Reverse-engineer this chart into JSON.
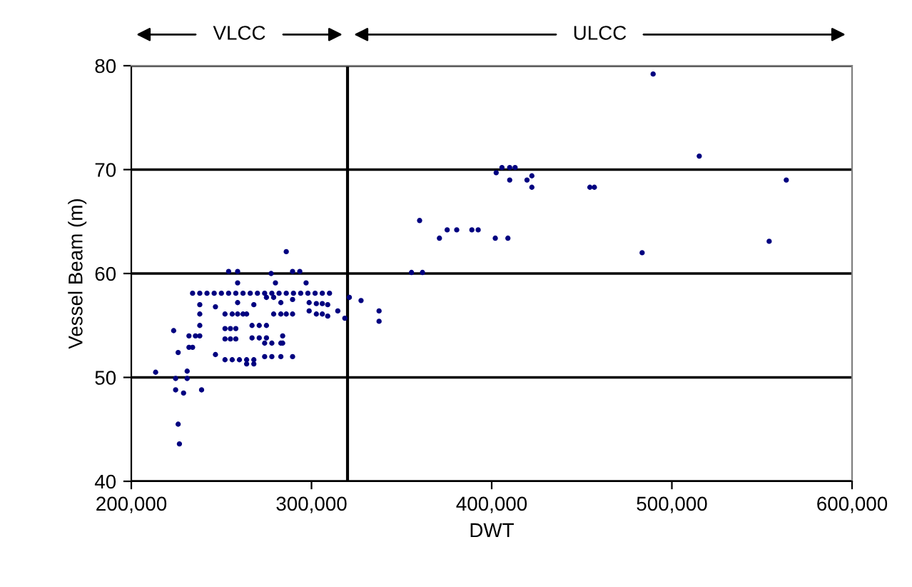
{
  "chart_data": {
    "type": "scatter",
    "xlabel": "DWT",
    "ylabel": "Vessel Beam (m)",
    "annotations": [
      "VLCC",
      "ULCC"
    ],
    "xlim": [
      200000,
      600000
    ],
    "xticks": [
      {
        "value": 200000,
        "label": "200,000"
      },
      {
        "value": 300000,
        "label": "300,000"
      },
      {
        "value": 400000,
        "label": "400,000"
      },
      {
        "value": 500000,
        "label": "500,000"
      },
      {
        "value": 600000,
        "label": "600,000"
      }
    ],
    "ylim": [
      40,
      80
    ],
    "yticks": [
      40,
      50,
      60,
      70,
      80
    ],
    "grid": "y",
    "marker": "circle",
    "ref_lines": [
      {
        "axis": "x",
        "value": 320000,
        "color": "#000000"
      }
    ],
    "series": [
      {
        "color": "#000080",
        "x": [
          213500,
          223500,
          224600,
          224600,
          226000,
          226000,
          226700,
          229000,
          231000,
          231000,
          232000,
          234000,
          232000,
          235600,
          238000,
          238000,
          239000,
          234000,
          238000,
          242000,
          246000,
          250000,
          254000,
          258000,
          262000,
          266000,
          270000,
          274000,
          278000,
          282000,
          286000,
          290000,
          294000,
          298000,
          302000,
          306000,
          310000,
          238000,
          238000,
          246700,
          246700,
          252000,
          256000,
          259000,
          262000,
          264000,
          252000,
          255000,
          258000,
          252000,
          255000,
          258000,
          252000,
          256000,
          260000,
          264000,
          268000,
          254000,
          259000,
          259000,
          259000,
          264000,
          268000,
          268000,
          267000,
          271000,
          275000,
          267000,
          271000,
          275000,
          274000,
          278000,
          283000,
          274000,
          278000,
          283000,
          275000,
          279000,
          283000,
          277600,
          280000,
          279000,
          283000,
          286000,
          284000,
          284000,
          286000,
          289500,
          293500,
          289500,
          289500,
          289500,
          297000,
          298700,
          298700,
          302700,
          306000,
          309000,
          302700,
          306000,
          309000,
          314600,
          318500,
          321000,
          327500,
          337500,
          337500,
          489600,
          515200,
          402500,
          405700,
          410000,
          413000,
          410000,
          419600,
          422300,
          422300,
          454500,
          457000,
          563500,
          360000,
          371000,
          375300,
          380600,
          389000,
          392500,
          402000,
          409000,
          483500,
          554000,
          355500,
          361600
        ],
        "values": [
          50.5,
          54.5,
          49.9,
          48.8,
          52.4,
          45.5,
          43.6,
          48.5,
          50.6,
          49.9,
          52.9,
          52.9,
          54.0,
          54.0,
          54.0,
          55.0,
          48.8,
          58.1,
          58.1,
          58.1,
          58.1,
          58.1,
          58.1,
          58.1,
          58.1,
          58.1,
          58.1,
          58.1,
          58.1,
          58.1,
          58.1,
          58.1,
          58.1,
          58.1,
          58.1,
          58.1,
          58.1,
          57.0,
          56.1,
          56.8,
          52.2,
          56.1,
          56.1,
          56.1,
          56.1,
          56.1,
          54.7,
          54.7,
          54.7,
          53.7,
          53.7,
          53.7,
          51.7,
          51.7,
          51.7,
          51.7,
          51.7,
          60.2,
          60.2,
          59.1,
          57.2,
          51.3,
          51.3,
          57.0,
          55.0,
          55.0,
          55.0,
          53.8,
          53.8,
          53.8,
          53.3,
          53.3,
          53.3,
          52.0,
          52.0,
          52.0,
          57.7,
          57.7,
          57.2,
          60.0,
          59.1,
          56.1,
          56.1,
          56.1,
          54.0,
          53.3,
          62.1,
          60.2,
          60.2,
          57.5,
          56.1,
          52.0,
          59.1,
          57.2,
          56.4,
          57.1,
          57.1,
          57.0,
          56.1,
          56.1,
          55.9,
          56.4,
          55.7,
          57.7,
          57.4,
          56.4,
          55.4,
          79.2,
          71.3,
          69.7,
          70.2,
          70.2,
          70.2,
          69.0,
          69.0,
          69.4,
          68.3,
          68.3,
          68.3,
          69.0,
          65.1,
          63.4,
          64.2,
          64.2,
          64.2,
          64.2,
          63.4,
          63.4,
          62.0,
          63.1,
          60.1,
          60.1
        ]
      }
    ]
  }
}
